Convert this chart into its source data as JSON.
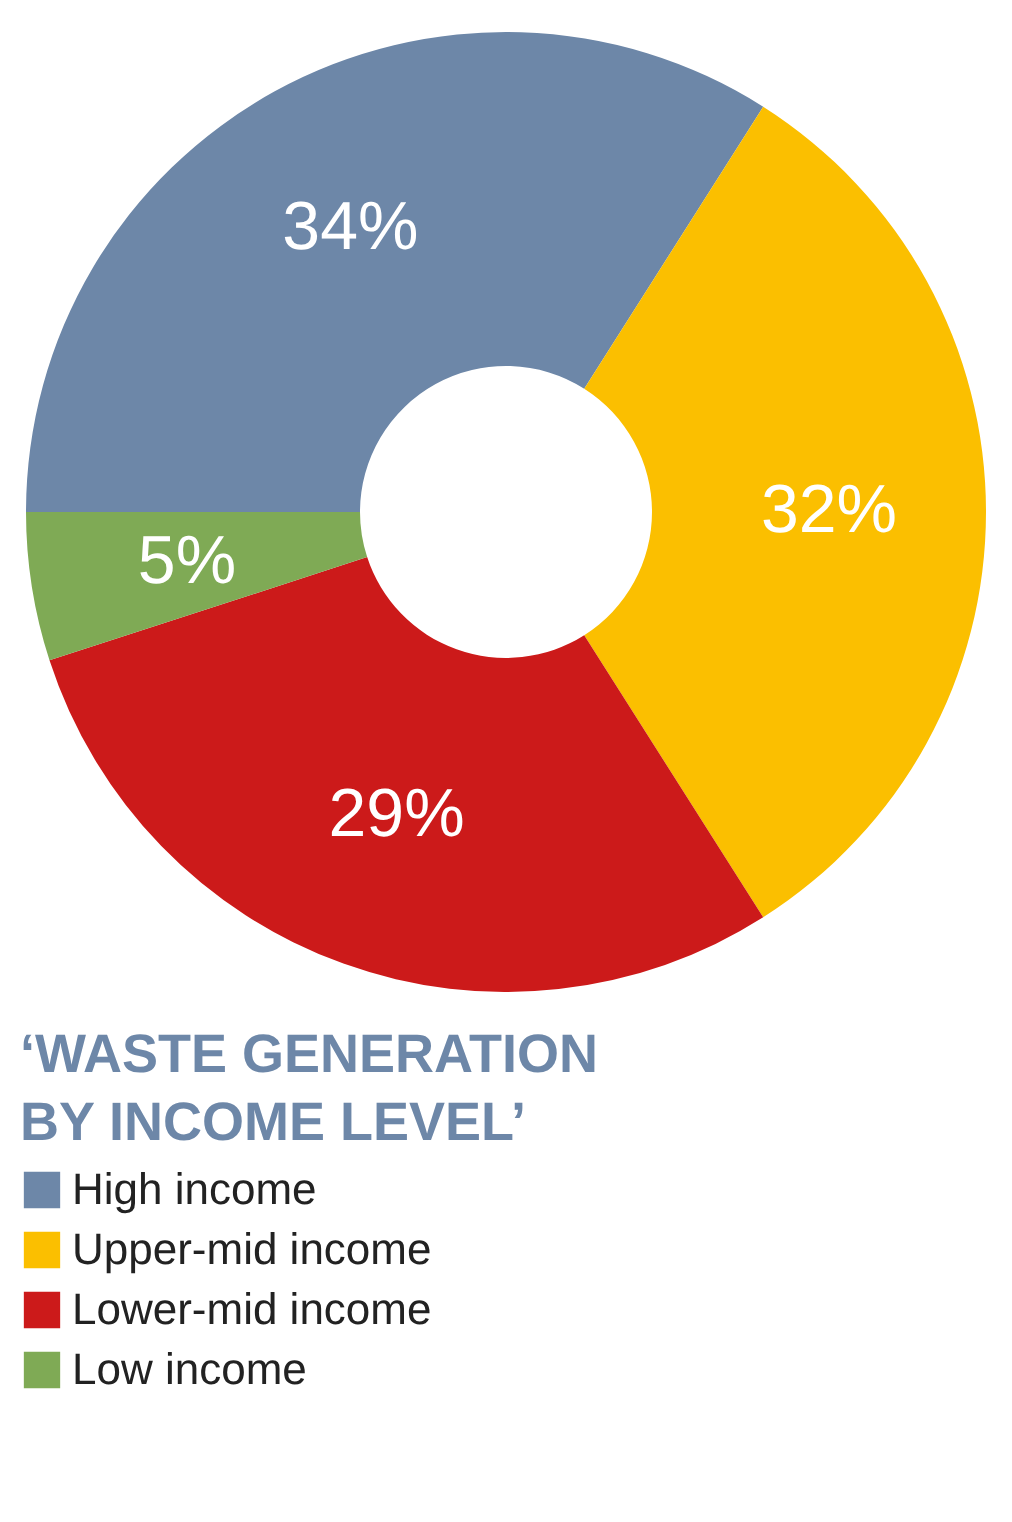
{
  "chart_data": {
    "type": "donut",
    "legend_title": "‘WASTE GENERATION\nBY INCOME LEVEL’",
    "categories": [
      "High income",
      "Upper-mid income",
      "Lower-mid income",
      "Low income"
    ],
    "values": [
      34,
      32,
      29,
      5
    ],
    "colors": [
      "#6d87a8",
      "#fbbf00",
      "#cc1a1a",
      "#7faa55"
    ],
    "value_labels": [
      "34%",
      "32%",
      "29%",
      "5%"
    ],
    "legend": "bottom left"
  }
}
